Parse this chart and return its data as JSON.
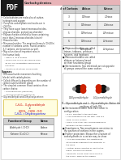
{
  "bg_color": "#f0f0f0",
  "page_bg": "#ffffff",
  "header_pink": "#e8b4b8",
  "table_header_bg": "#d8d8d8",
  "table_alt_row": "#eeeeee",
  "pdf_icon_bg": "#2a2a2a",
  "pdf_text": "PDF",
  "right_table_headers": [
    "# of Carbons",
    "Aldose",
    "Ketose"
  ],
  "right_table_rows": [
    [
      "3",
      "D-Triose",
      "L-Triose"
    ],
    [
      "4",
      "D-Tetrose",
      "L-Tetrose"
    ],
    [
      "5",
      "D-Pentose",
      "L-Pentose"
    ],
    [
      "6",
      "D-Hexose",
      "L-Hexose"
    ],
    [
      "7",
      "D-Heptose",
      "L-Heptose"
    ]
  ],
  "mol_caption": "D - Glyceraldehyde and L - Glyceraldehyde. Notice the",
  "mol_caption2": "positions of both OH",
  "fg_headers": [
    "Functional Group",
    "Name"
  ],
  "fg_rows": [
    [
      "Aldehyde (-CHO)",
      "Aldose"
    ],
    [
      "Ketone (C=O-C)",
      "Ketose"
    ]
  ]
}
